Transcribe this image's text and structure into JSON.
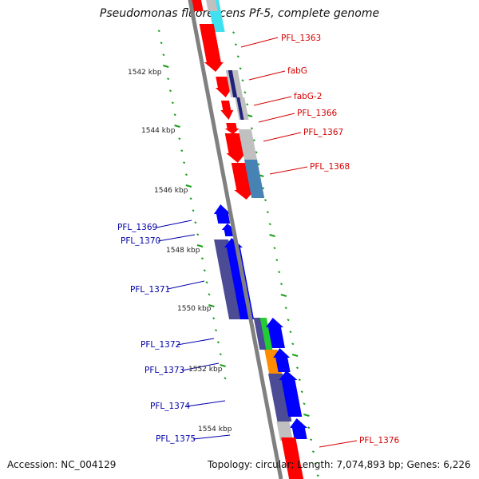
{
  "title": "Pseudomonas fluorescens Pf-5, complete genome",
  "accession": "Accession: NC_004129",
  "topology": "Topology: circular; Length: 7,074,893 bp; Genes: 6,226",
  "colors": {
    "forward_label": "#d40000",
    "reverse_label": "#0000aa",
    "forward_cds": "#ff0000",
    "reverse_cds": "#0000ff",
    "dark_purple": "#4b4b96",
    "navy": "#22227a",
    "light_gray": "#c0c0c0",
    "steel_blue": "#4682b4",
    "cyan": "#40e0f0",
    "green": "#22cc33",
    "orange": "#ff8c00",
    "backbone": "#808080",
    "tick": "#1b9e1b"
  },
  "scale_labels": [
    "1542 kbp",
    "1544 kbp",
    "1546 kbp",
    "1548 kbp",
    "1550 kbp",
    "1552 kbp",
    "1554 kbp"
  ],
  "forward_genes": [
    "PFL_1363",
    "fabG",
    "fabG-2",
    "PFL_1366",
    "PFL_1367",
    "PFL_1368",
    "PFL_1376"
  ],
  "reverse_genes": [
    "PFL_1369",
    "PFL_1370",
    "PFL_1371",
    "PFL_1372",
    "PFL_1373",
    "PFL_1374",
    "PFL_1375"
  ]
}
